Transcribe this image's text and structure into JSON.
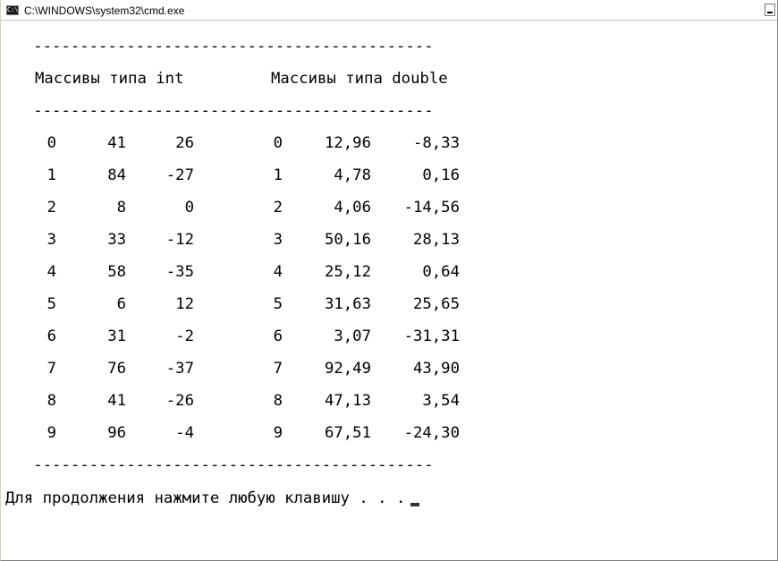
{
  "window": {
    "title": "C:\\WINDOWS\\system32\\cmd.exe",
    "icon": "cmd-icon",
    "icon_text": "C:\\"
  },
  "console": {
    "separator": "   -------------------------------------------",
    "header_int": "Массивы типа int",
    "header_double": "Массивы типа double",
    "rows": [
      {
        "i": "0",
        "a": "41",
        "b": "26",
        "j": "0",
        "c": "12,96",
        "d": "-8,33"
      },
      {
        "i": "1",
        "a": "84",
        "b": "-27",
        "j": "1",
        "c": "4,78",
        "d": "0,16"
      },
      {
        "i": "2",
        "a": "8",
        "b": "0",
        "j": "2",
        "c": "4,06",
        "d": "-14,56"
      },
      {
        "i": "3",
        "a": "33",
        "b": "-12",
        "j": "3",
        "c": "50,16",
        "d": "28,13"
      },
      {
        "i": "4",
        "a": "58",
        "b": "-35",
        "j": "4",
        "c": "25,12",
        "d": "0,64"
      },
      {
        "i": "5",
        "a": "6",
        "b": "12",
        "j": "5",
        "c": "31,63",
        "d": "25,65"
      },
      {
        "i": "6",
        "a": "31",
        "b": "-2",
        "j": "6",
        "c": "3,07",
        "d": "-31,31"
      },
      {
        "i": "7",
        "a": "76",
        "b": "-37",
        "j": "7",
        "c": "92,49",
        "d": "43,90"
      },
      {
        "i": "8",
        "a": "41",
        "b": "-26",
        "j": "8",
        "c": "47,13",
        "d": "3,54"
      },
      {
        "i": "9",
        "a": "96",
        "b": "-4",
        "j": "9",
        "c": "67,51",
        "d": "-24,30"
      }
    ],
    "prompt": "Для продолжения нажмите любую клавишу . . ."
  }
}
